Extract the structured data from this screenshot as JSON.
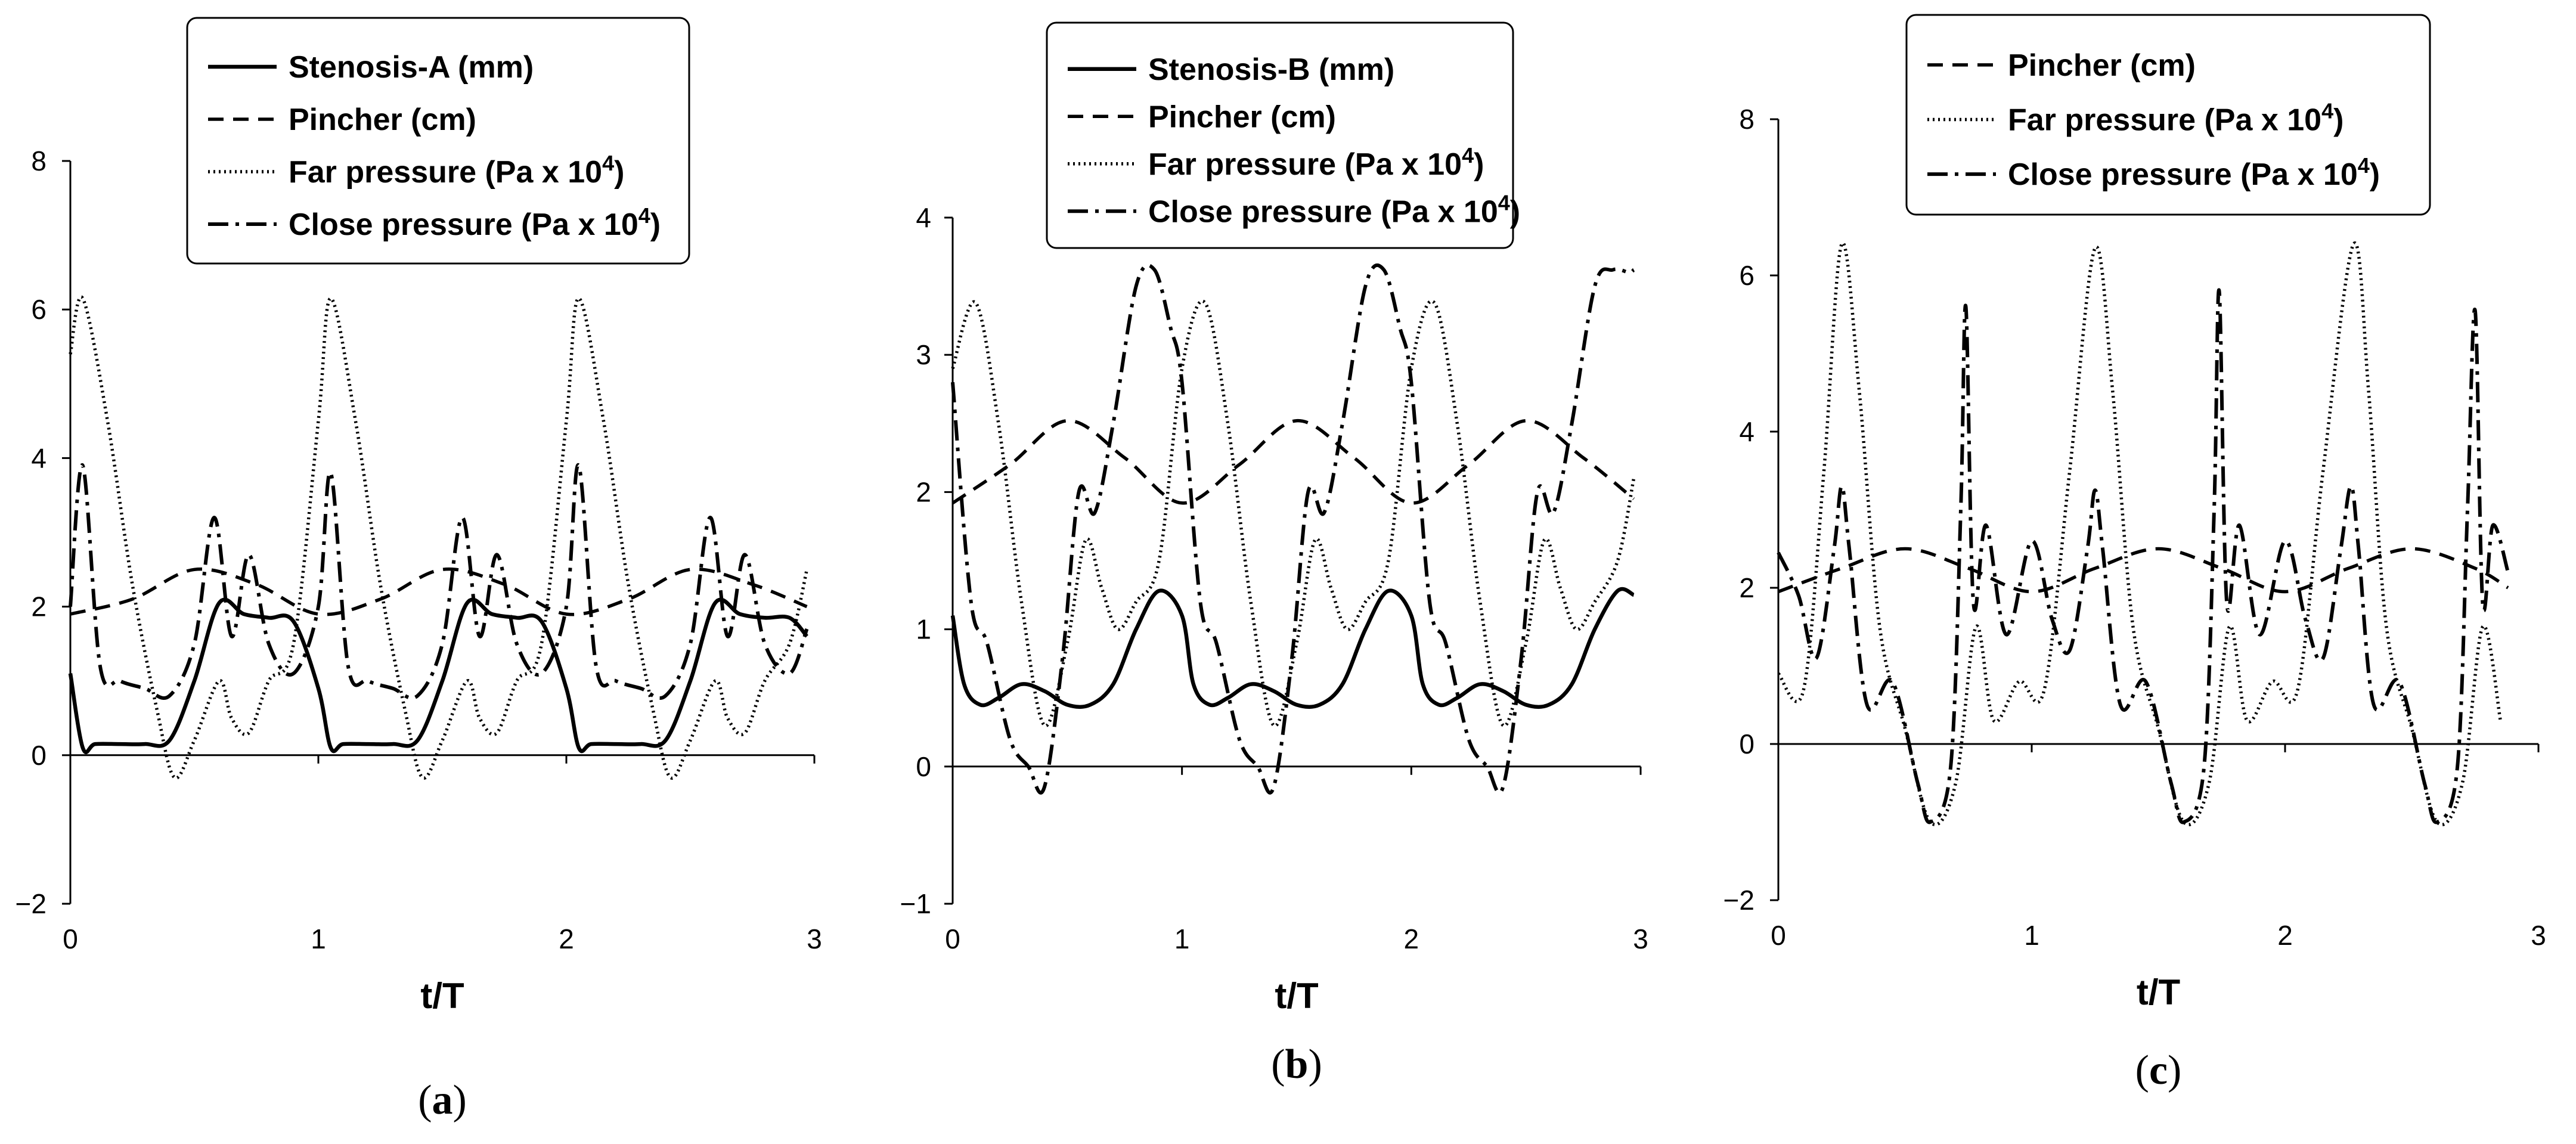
{
  "chart_data": [
    {
      "type": "line",
      "panel_label": "a",
      "xlabel": "t/T",
      "ylabel": "",
      "xlim": [
        0,
        3
      ],
      "ylim": [
        -2,
        8
      ],
      "xticks": [
        0,
        1,
        2,
        3
      ],
      "yticks": [
        -2,
        0,
        2,
        4,
        6,
        8
      ],
      "ytick_labels": [
        "−2",
        "0",
        "2",
        "4",
        "6",
        "8"
      ],
      "legend_position": "top-center",
      "series": [
        {
          "name": "Stenosis-A (mm)",
          "style": "solid",
          "x": [
            0,
            0.05,
            0.1,
            0.2,
            0.3,
            0.4,
            0.5,
            0.6,
            0.7,
            0.8,
            0.9,
            1.0,
            1.05,
            1.1,
            1.2,
            1.3,
            1.4,
            1.5,
            1.6,
            1.7,
            1.8,
            1.9,
            2.0,
            2.05,
            2.1,
            2.2,
            2.3,
            2.4,
            2.5,
            2.6,
            2.7,
            2.8,
            2.9,
            2.97
          ],
          "y": [
            1.1,
            0.1,
            0.15,
            0.15,
            0.15,
            0.2,
            1.0,
            2.05,
            1.9,
            1.85,
            1.8,
            0.9,
            0.1,
            0.15,
            0.15,
            0.15,
            0.2,
            1.0,
            2.05,
            1.9,
            1.85,
            1.8,
            0.9,
            0.1,
            0.15,
            0.15,
            0.15,
            0.2,
            1.0,
            2.05,
            1.9,
            1.85,
            1.85,
            1.6
          ]
        },
        {
          "name": "Pincher (cm)",
          "style": "dashed",
          "x": [
            0,
            0.25,
            0.5,
            0.75,
            1.0,
            1.25,
            1.5,
            1.75,
            2.0,
            2.25,
            2.5,
            2.75,
            2.97
          ],
          "y": [
            1.9,
            2.1,
            2.5,
            2.3,
            1.9,
            2.1,
            2.5,
            2.3,
            1.9,
            2.1,
            2.5,
            2.3,
            2.0
          ]
        },
        {
          "name": "Far pressure (Pa x 10⁴)",
          "style": "dotted",
          "x": [
            0,
            0.05,
            0.15,
            0.25,
            0.35,
            0.42,
            0.5,
            0.6,
            0.65,
            0.72,
            0.8,
            0.9,
            1.0,
            1.05,
            1.15,
            1.25,
            1.35,
            1.42,
            1.5,
            1.6,
            1.65,
            1.72,
            1.8,
            1.9,
            2.0,
            2.05,
            2.15,
            2.25,
            2.35,
            2.42,
            2.5,
            2.6,
            2.65,
            2.72,
            2.8,
            2.9,
            2.97
          ],
          "y": [
            5.4,
            6.15,
            4.5,
            2.3,
            0.6,
            -0.3,
            0.2,
            1.0,
            0.5,
            0.3,
            1.0,
            1.5,
            4.5,
            6.15,
            4.5,
            2.3,
            0.6,
            -0.3,
            0.2,
            1.0,
            0.5,
            0.3,
            1.0,
            1.5,
            4.5,
            6.15,
            4.5,
            2.3,
            0.6,
            -0.3,
            0.2,
            1.0,
            0.5,
            0.3,
            1.0,
            1.5,
            2.5
          ]
        },
        {
          "name": "Close pressure (Pa x 10⁴)",
          "style": "dashdot",
          "x": [
            0,
            0.05,
            0.12,
            0.2,
            0.3,
            0.4,
            0.5,
            0.58,
            0.65,
            0.72,
            0.8,
            0.9,
            1.0,
            1.05,
            1.12,
            1.2,
            1.3,
            1.4,
            1.5,
            1.58,
            1.65,
            1.72,
            1.8,
            1.9,
            2.0,
            2.05,
            2.12,
            2.2,
            2.3,
            2.4,
            2.5,
            2.58,
            2.65,
            2.72,
            2.8,
            2.9,
            2.97
          ],
          "y": [
            2.0,
            3.9,
            1.2,
            1.0,
            0.9,
            0.8,
            1.5,
            3.2,
            1.6,
            2.7,
            1.5,
            1.1,
            2.0,
            3.8,
            1.2,
            1.0,
            0.9,
            0.8,
            1.5,
            3.2,
            1.6,
            2.7,
            1.5,
            1.1,
            2.0,
            3.9,
            1.2,
            1.0,
            0.9,
            0.8,
            1.5,
            3.2,
            1.6,
            2.7,
            1.5,
            1.1,
            1.7
          ]
        }
      ]
    },
    {
      "type": "line",
      "panel_label": "b",
      "xlabel": "t/T",
      "ylabel": "",
      "xlim": [
        0,
        3
      ],
      "ylim": [
        -1,
        4
      ],
      "xticks": [
        0,
        1,
        2,
        3
      ],
      "yticks": [
        -1,
        0,
        1,
        2,
        3,
        4
      ],
      "ytick_labels": [
        "−1",
        "0",
        "1",
        "2",
        "3",
        "4"
      ],
      "legend_position": "top-center",
      "series": [
        {
          "name": "Stenosis-B (mm)",
          "style": "solid",
          "x": [
            0,
            0.05,
            0.12,
            0.2,
            0.3,
            0.4,
            0.5,
            0.6,
            0.7,
            0.8,
            0.9,
            1.0,
            1.05,
            1.12,
            1.2,
            1.3,
            1.4,
            1.5,
            1.6,
            1.7,
            1.8,
            1.9,
            2.0,
            2.05,
            2.12,
            2.2,
            2.3,
            2.4,
            2.5,
            2.6,
            2.7,
            2.8,
            2.9,
            2.97
          ],
          "y": [
            1.1,
            0.6,
            0.45,
            0.5,
            0.6,
            0.55,
            0.45,
            0.45,
            0.6,
            1.0,
            1.28,
            1.1,
            0.6,
            0.45,
            0.5,
            0.6,
            0.55,
            0.45,
            0.45,
            0.6,
            1.0,
            1.28,
            1.1,
            0.6,
            0.45,
            0.5,
            0.6,
            0.55,
            0.45,
            0.45,
            0.6,
            1.0,
            1.28,
            1.25
          ]
        },
        {
          "name": "Pincher (cm)",
          "style": "dashed",
          "x": [
            0,
            0.25,
            0.5,
            0.75,
            1.0,
            1.25,
            1.5,
            1.75,
            2.0,
            2.25,
            2.5,
            2.75,
            2.97
          ],
          "y": [
            1.92,
            2.2,
            2.52,
            2.25,
            1.92,
            2.2,
            2.52,
            2.25,
            1.92,
            2.2,
            2.52,
            2.25,
            1.95
          ]
        },
        {
          "name": "Far pressure (Pa x 10⁴)",
          "style": "dotted",
          "x": [
            0,
            0.1,
            0.2,
            0.3,
            0.4,
            0.5,
            0.58,
            0.65,
            0.72,
            0.8,
            0.9,
            1.0,
            1.1,
            1.2,
            1.3,
            1.4,
            1.5,
            1.58,
            1.65,
            1.72,
            1.8,
            1.9,
            2.0,
            2.1,
            2.2,
            2.3,
            2.4,
            2.5,
            2.58,
            2.65,
            2.72,
            2.8,
            2.9,
            2.97
          ],
          "y": [
            2.9,
            3.38,
            2.5,
            1.2,
            0.3,
            0.9,
            1.65,
            1.3,
            1.0,
            1.2,
            1.5,
            2.9,
            3.38,
            2.5,
            1.2,
            0.3,
            0.9,
            1.65,
            1.3,
            1.0,
            1.2,
            1.5,
            2.9,
            3.38,
            2.5,
            1.2,
            0.3,
            0.9,
            1.65,
            1.3,
            1.0,
            1.2,
            1.5,
            2.1
          ]
        },
        {
          "name": "Close pressure (Pa x 10⁴)",
          "style": "dashdot",
          "x": [
            0,
            0.08,
            0.15,
            0.25,
            0.33,
            0.4,
            0.48,
            0.55,
            0.62,
            0.7,
            0.8,
            0.88,
            0.95,
            1.0,
            1.08,
            1.15,
            1.25,
            1.33,
            1.4,
            1.48,
            1.55,
            1.62,
            1.7,
            1.8,
            1.88,
            1.95,
            2.0,
            2.08,
            2.15,
            2.25,
            2.33,
            2.4,
            2.48,
            2.55,
            2.62,
            2.7,
            2.8,
            2.88,
            2.95,
            2.97
          ],
          "y": [
            2.8,
            1.2,
            0.9,
            0.2,
            0.0,
            -0.15,
            0.8,
            2.0,
            1.85,
            2.5,
            3.5,
            3.62,
            3.2,
            2.8,
            1.2,
            0.9,
            0.2,
            0.0,
            -0.15,
            0.8,
            2.0,
            1.85,
            2.5,
            3.5,
            3.62,
            3.2,
            2.8,
            1.2,
            0.9,
            0.2,
            0.0,
            -0.15,
            0.8,
            2.0,
            1.85,
            2.5,
            3.5,
            3.62,
            3.6,
            3.62
          ]
        }
      ]
    },
    {
      "type": "line",
      "panel_label": "c",
      "xlabel": "t/T",
      "ylabel": "",
      "xlim": [
        0,
        3
      ],
      "ylim": [
        -2,
        8
      ],
      "xticks": [
        0,
        1,
        2,
        3
      ],
      "yticks": [
        -2,
        0,
        2,
        4,
        6,
        8
      ],
      "ytick_labels": [
        "−2",
        "0",
        "2",
        "4",
        "6",
        "8"
      ],
      "legend_position": "top-center",
      "series": [
        {
          "name": "Pincher (cm)",
          "style": "dashed",
          "x": [
            0,
            0.25,
            0.5,
            0.75,
            1.0,
            1.25,
            1.5,
            1.75,
            2.0,
            2.25,
            2.5,
            2.75,
            2.88
          ],
          "y": [
            1.95,
            2.25,
            2.5,
            2.25,
            1.95,
            2.25,
            2.5,
            2.25,
            1.95,
            2.25,
            2.5,
            2.25,
            2.0
          ]
        },
        {
          "name": "Far pressure (Pa x 10⁴)",
          "style": "dotted",
          "x": [
            0,
            0.1,
            0.18,
            0.25,
            0.32,
            0.4,
            0.5,
            0.6,
            0.7,
            0.78,
            0.85,
            0.95,
            1.05,
            1.15,
            1.25,
            1.32,
            1.4,
            1.5,
            1.6,
            1.7,
            1.78,
            1.85,
            1.95,
            2.05,
            2.15,
            2.27,
            2.33,
            2.4,
            2.5,
            2.6,
            2.7,
            2.78,
            2.85
          ],
          "y": [
            0.9,
            0.7,
            3.5,
            6.4,
            4.5,
            1.5,
            0.2,
            -1.0,
            -0.5,
            1.5,
            0.3,
            0.8,
            0.7,
            3.5,
            6.35,
            4.5,
            1.5,
            0.2,
            -1.0,
            -0.5,
            1.5,
            0.3,
            0.8,
            0.7,
            3.5,
            6.4,
            4.5,
            1.5,
            0.2,
            -1.0,
            -0.5,
            1.5,
            0.3
          ]
        },
        {
          "name": "Close pressure (Pa x 10⁴)",
          "style": "dashdot",
          "x": [
            0,
            0.08,
            0.15,
            0.22,
            0.25,
            0.28,
            0.35,
            0.45,
            0.55,
            0.6,
            0.68,
            0.72,
            0.74,
            0.77,
            0.82,
            0.9,
            1.0,
            1.08,
            1.15,
            1.22,
            1.25,
            1.28,
            1.35,
            1.45,
            1.55,
            1.6,
            1.68,
            1.72,
            1.74,
            1.77,
            1.82,
            1.9,
            2.0,
            2.08,
            2.15,
            2.22,
            2.26,
            2.29,
            2.35,
            2.45,
            2.55,
            2.6,
            2.68,
            2.72,
            2.75,
            2.78,
            2.82,
            2.88
          ],
          "y": [
            2.45,
            1.9,
            1.1,
            2.5,
            3.3,
            2.5,
            0.5,
            0.8,
            -0.5,
            -1.0,
            -0.3,
            3.0,
            5.6,
            1.8,
            2.8,
            1.4,
            2.6,
            1.6,
            1.2,
            2.5,
            3.25,
            2.5,
            0.5,
            0.8,
            -0.5,
            -1.0,
            -0.3,
            3.0,
            5.8,
            1.8,
            2.8,
            1.4,
            2.6,
            1.6,
            1.1,
            2.5,
            3.3,
            2.5,
            0.5,
            0.8,
            -0.5,
            -1.0,
            -0.3,
            3.0,
            5.55,
            1.8,
            2.8,
            2.2
          ]
        }
      ]
    }
  ]
}
